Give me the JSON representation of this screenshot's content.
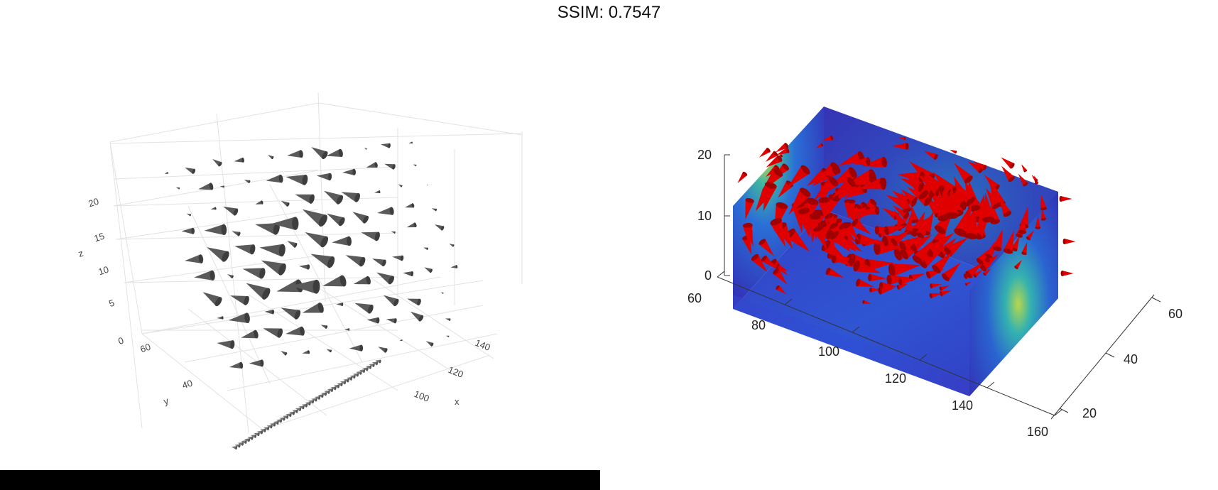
{
  "title": "SSIM: 0.7547",
  "chart_data": [
    {
      "type": "scatter",
      "subtype": "3d-cone",
      "renderer": "plotly-like",
      "cone_color": "#5a5a5a",
      "grid": true,
      "xlabel": "x",
      "ylabel": "y",
      "zlabel": "z",
      "x_ticks": [
        "100",
        "120",
        "140"
      ],
      "y_ticks": [
        "40",
        "60"
      ],
      "z_ticks": [
        "0",
        "5",
        "10",
        "15",
        "20"
      ],
      "xlim": [
        75,
        155
      ],
      "ylim": [
        20,
        70
      ],
      "zlim": [
        0,
        20
      ]
    },
    {
      "type": "scatter",
      "subtype": "3d-cone-with-slices",
      "renderer": "matlab-like",
      "cone_color": "#e00000",
      "colormap": "jet",
      "grid": false,
      "x_ticks": [
        "60",
        "80",
        "100",
        "120",
        "140",
        "160"
      ],
      "y_ticks": [
        "20",
        "40",
        "60"
      ],
      "z_ticks": [
        "0",
        "10",
        "20"
      ],
      "xlim": [
        60,
        160
      ],
      "ylim": [
        10,
        70
      ],
      "zlim": [
        0,
        20
      ]
    }
  ]
}
